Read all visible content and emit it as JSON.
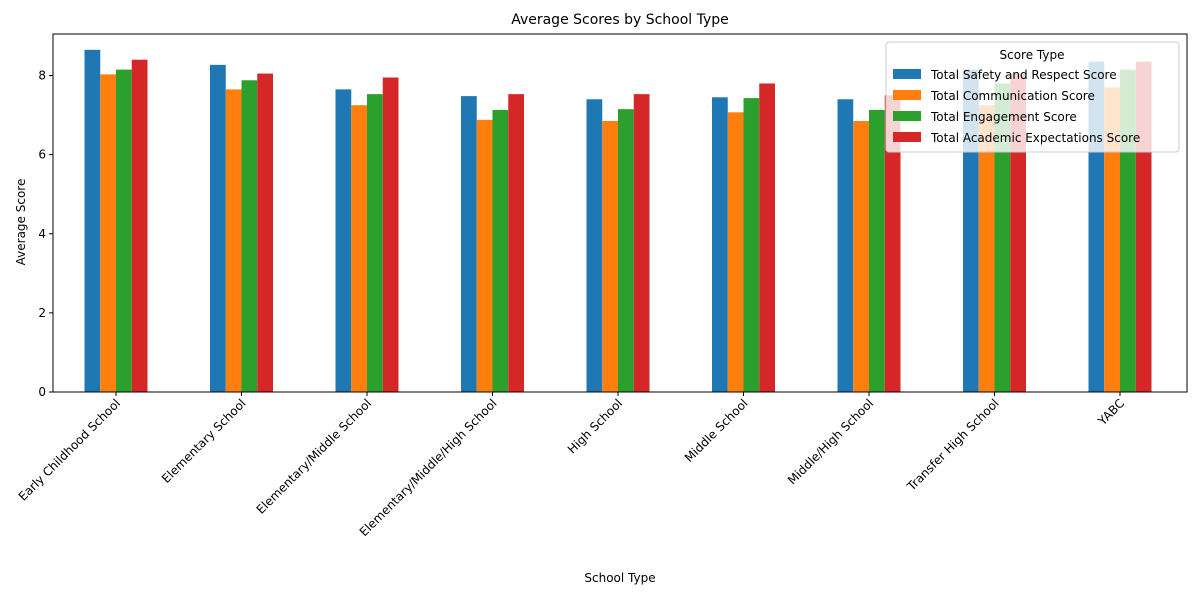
{
  "chart_data": {
    "type": "bar",
    "title": "Average Scores by School Type",
    "xlabel": "School Type",
    "ylabel": "Average Score",
    "ylim": [
      0,
      9.05
    ],
    "yticks": [
      0,
      2,
      4,
      6,
      8
    ],
    "grid": false,
    "legend": {
      "title": "Score Type",
      "placement": "upper right"
    },
    "categories": [
      "Early Childhood School",
      "Elementary School",
      "Elementary/Middle School",
      "Elementary/Middle/High School",
      "High School",
      "Middle School",
      "Middle/High School",
      "Transfer High School",
      "YABC"
    ],
    "series": [
      {
        "name": "Total Safety and Respect Score",
        "color": "#1f77b4",
        "values": [
          8.65,
          8.27,
          7.65,
          7.48,
          7.4,
          7.45,
          7.4,
          8.15,
          8.35
        ]
      },
      {
        "name": "Total Communication Score",
        "color": "#ff7f0e",
        "values": [
          8.03,
          7.65,
          7.25,
          6.88,
          6.85,
          7.07,
          6.85,
          7.25,
          7.7
        ]
      },
      {
        "name": "Total Engagement Score",
        "color": "#2ca02c",
        "values": [
          8.15,
          7.88,
          7.53,
          7.13,
          7.15,
          7.43,
          7.13,
          7.8,
          8.15
        ]
      },
      {
        "name": "Total Academic Expectations Score",
        "color": "#d62728",
        "values": [
          8.4,
          8.05,
          7.95,
          7.53,
          7.53,
          7.8,
          7.5,
          8.05,
          8.35
        ]
      }
    ]
  }
}
